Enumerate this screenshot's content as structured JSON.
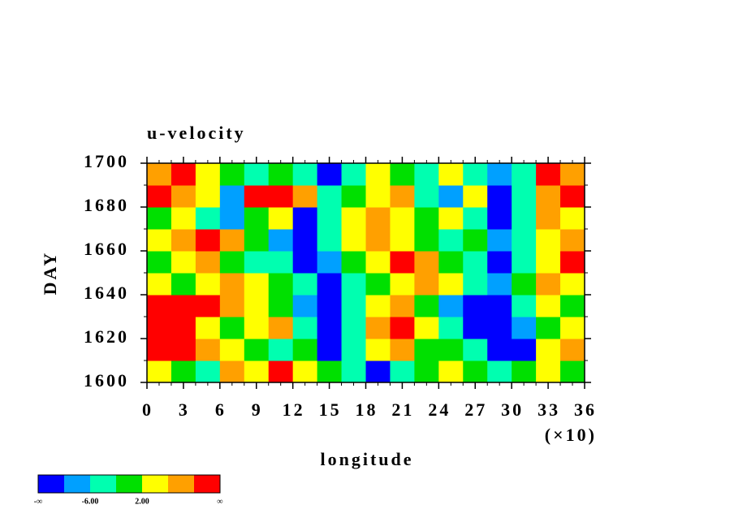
{
  "chart_data": {
    "type": "filled-contour",
    "title": "u-velocity",
    "x_label": "longitude",
    "x_multiplier_label": "(×10)",
    "y_label": "DAY",
    "xlim": [
      0,
      36
    ],
    "ylim": [
      1600,
      1700
    ],
    "xticks": [
      0,
      3,
      6,
      9,
      12,
      15,
      18,
      21,
      24,
      27,
      30,
      33,
      36
    ],
    "xminorticks": [
      1,
      2,
      4,
      5,
      7,
      8,
      10,
      11,
      13,
      14,
      16,
      17,
      19,
      20,
      22,
      23,
      25,
      26,
      28,
      29,
      31,
      32,
      34,
      35
    ],
    "yticks": [
      1600,
      1620,
      1640,
      1660,
      1680,
      1700
    ],
    "yminorticks": [
      1610,
      1630,
      1650,
      1670,
      1690
    ],
    "x": [
      1,
      3,
      5,
      7,
      9,
      11,
      13,
      15,
      17,
      19,
      21,
      23,
      25,
      27,
      29,
      31,
      33,
      35
    ],
    "y": [
      1605,
      1615,
      1625,
      1635,
      1645,
      1655,
      1665,
      1675,
      1685,
      1695
    ],
    "z": [
      [
        4,
        0,
        -4,
        8,
        4,
        12,
        4,
        0,
        -4,
        -12,
        -4,
        0,
        4,
        0,
        -4,
        0,
        4,
        0
      ],
      [
        12,
        12,
        8,
        4,
        0,
        -4,
        0,
        -12,
        -4,
        4,
        8,
        0,
        0,
        -4,
        -14,
        -12,
        4,
        8
      ],
      [
        14,
        12,
        4,
        0,
        4,
        8,
        -4,
        -12,
        -4,
        8,
        12,
        4,
        -4,
        -14,
        -14,
        -8,
        0,
        4
      ],
      [
        12,
        14,
        12,
        8,
        4,
        0,
        -8,
        -14,
        -4,
        4,
        8,
        0,
        -8,
        -14,
        -14,
        -4,
        4,
        0
      ],
      [
        4,
        0,
        4,
        8,
        4,
        0,
        -4,
        -12,
        -4,
        0,
        4,
        8,
        4,
        -4,
        -8,
        0,
        8,
        4
      ],
      [
        0,
        4,
        8,
        0,
        -4,
        -4,
        -12,
        -8,
        0,
        4,
        12,
        8,
        0,
        -4,
        -12,
        -4,
        4,
        12
      ],
      [
        4,
        8,
        12,
        8,
        0,
        -8,
        -12,
        -4,
        4,
        8,
        4,
        0,
        -4,
        0,
        -8,
        -4,
        4,
        8
      ],
      [
        0,
        4,
        -4,
        -8,
        0,
        4,
        -12,
        -4,
        4,
        8,
        4,
        0,
        4,
        -4,
        -14,
        -4,
        8,
        4
      ],
      [
        12,
        8,
        4,
        -8,
        12,
        12,
        8,
        -4,
        0,
        4,
        8,
        -4,
        -8,
        4,
        -14,
        -4,
        8,
        12
      ],
      [
        8,
        12,
        4,
        0,
        -4,
        0,
        -4,
        -12,
        -4,
        4,
        0,
        -4,
        4,
        -4,
        -8,
        -4,
        12,
        8
      ]
    ],
    "levels": [
      -10,
      -6,
      -2,
      2,
      6,
      10
    ],
    "colors": [
      "#0000ff",
      "#00a0ff",
      "#00ffb0",
      "#00e000",
      "#ffff00",
      "#ffa000",
      "#ff0000"
    ],
    "colorbar_low_label": "-∞",
    "colorbar_high_label": "∞",
    "colorbar_ticks": [
      {
        "value": -6,
        "label": "-6.00"
      },
      {
        "value": 2,
        "label": "2.00"
      }
    ]
  }
}
